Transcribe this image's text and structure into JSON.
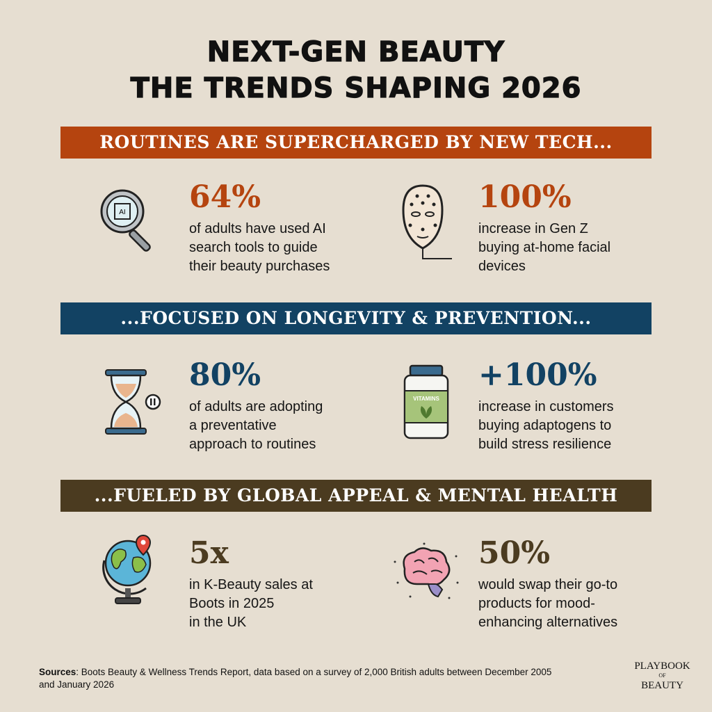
{
  "title": {
    "line1": "NEXT-GEN BEAUTY",
    "line2": "THE TRENDS SHAPING 2026"
  },
  "colors": {
    "background": "#e6ded1",
    "section1": "#b5440f",
    "section2": "#124263",
    "section3": "#4b3b20"
  },
  "sections": [
    {
      "heading": "ROUTINES ARE SUPERCHARGED BY NEW TECH...",
      "stats": [
        {
          "icon": "ai-magnifier-icon",
          "value": "64%",
          "text": [
            "of adults have used AI",
            "search tools to guide",
            "their beauty purchases"
          ]
        },
        {
          "icon": "face-device-icon",
          "value": "100%",
          "text": [
            "increase in Gen Z",
            "buying at-home facial",
            "devices"
          ]
        }
      ]
    },
    {
      "heading": "...FOCUSED ON LONGEVITY & PREVENTION...",
      "stats": [
        {
          "icon": "hourglass-pause-icon",
          "value": "80%",
          "text": [
            "of adults are adopting",
            "a preventative",
            "approach to routines"
          ]
        },
        {
          "icon": "vitamins-bottle-icon",
          "value": "+100%",
          "text": [
            "increase in customers",
            "buying adaptogens to",
            "build stress resilience"
          ],
          "icon_label": "VITAMINS"
        }
      ]
    },
    {
      "heading": "...FUELED BY GLOBAL APPEAL & MENTAL HEALTH",
      "stats": [
        {
          "icon": "globe-pin-icon",
          "value": "5x",
          "text": [
            "in K-Beauty sales at",
            "Boots in 2025",
            "in the UK"
          ]
        },
        {
          "icon": "brain-sparkle-icon",
          "value": "50%",
          "text": [
            "would swap their go-to",
            "products for mood-",
            "enhancing alternatives"
          ]
        }
      ]
    }
  ],
  "footer": {
    "sources_label": "Sources",
    "sources_text": ": Boots Beauty & Wellness Trends Report, data based on a survey of 2,000 British adults between December 2005 and January 2026",
    "logo": {
      "line1": "PLAYBOOK",
      "line2": "OF",
      "line3": "BEAUTY"
    }
  }
}
